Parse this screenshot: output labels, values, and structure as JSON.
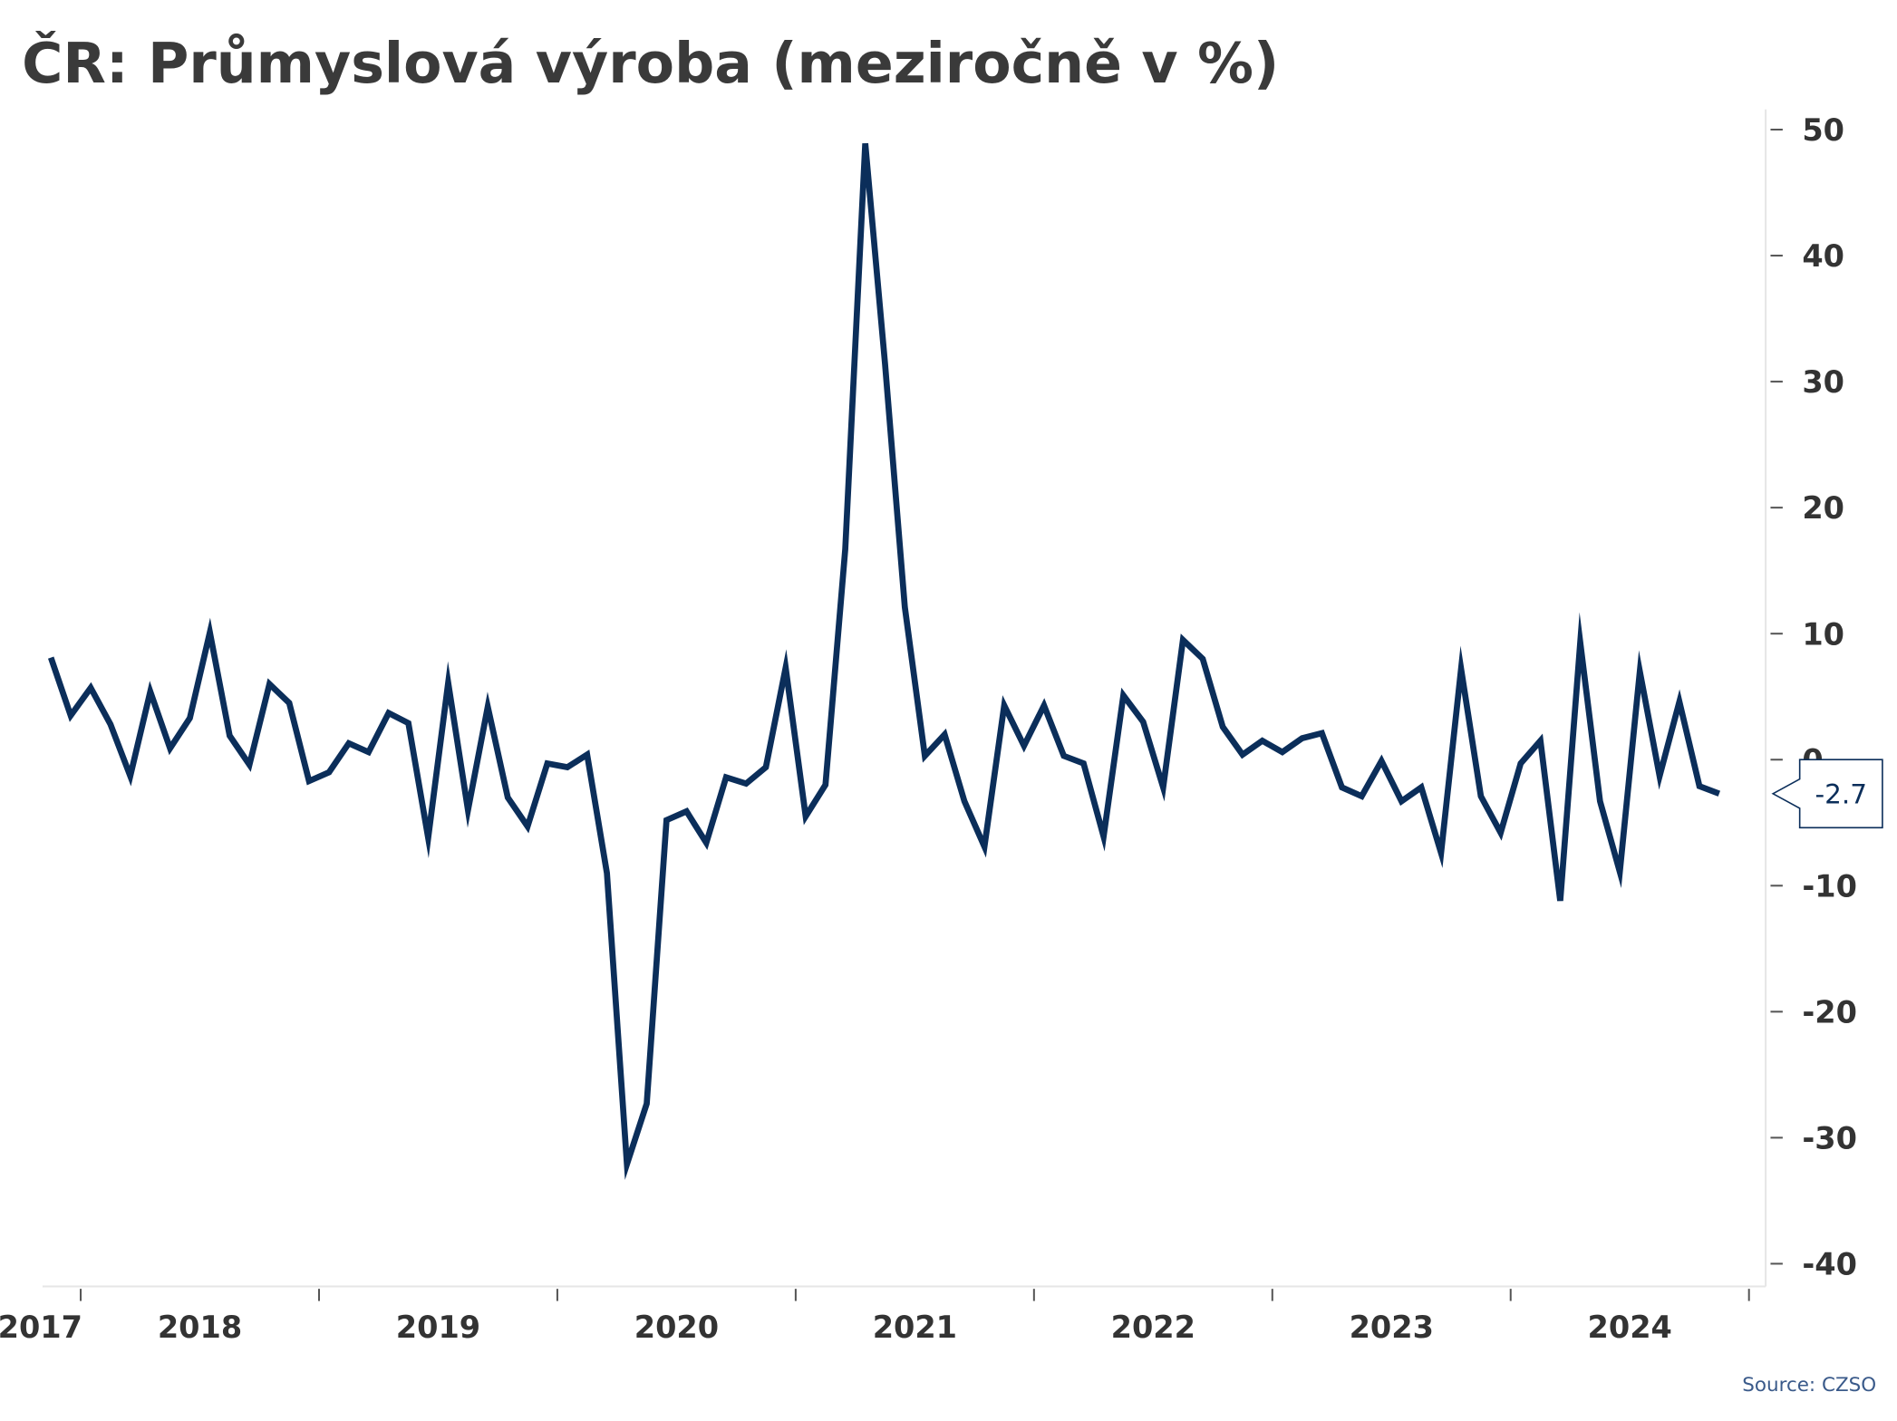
{
  "chart_data": {
    "type": "line",
    "title": "ČR: Průmyslová výroba (meziročně v %)",
    "source": "Source: CZSO",
    "x": [
      2017.875,
      2017.958,
      2018.042,
      2018.125,
      2018.208,
      2018.292,
      2018.375,
      2018.458,
      2018.542,
      2018.625,
      2018.708,
      2018.792,
      2018.875,
      2018.958,
      2019.042,
      2019.125,
      2019.208,
      2019.292,
      2019.375,
      2019.458,
      2019.542,
      2019.625,
      2019.708,
      2019.792,
      2019.875,
      2019.958,
      2020.042,
      2020.125,
      2020.208,
      2020.292,
      2020.375,
      2020.458,
      2020.542,
      2020.625,
      2020.708,
      2020.792,
      2020.875,
      2020.958,
      2021.042,
      2021.125,
      2021.208,
      2021.292,
      2021.375,
      2021.458,
      2021.542,
      2021.625,
      2021.708,
      2021.792,
      2021.875,
      2021.958,
      2022.042,
      2022.125,
      2022.208,
      2022.292,
      2022.375,
      2022.458,
      2022.542,
      2022.625,
      2022.708,
      2022.792,
      2022.875,
      2022.958,
      2023.042,
      2023.125,
      2023.208,
      2023.292,
      2023.375,
      2023.458,
      2023.542,
      2023.625,
      2023.708,
      2023.792,
      2023.875,
      2023.958,
      2024.042,
      2024.125,
      2024.208,
      2024.292,
      2024.375,
      2024.458,
      2024.542,
      2024.625,
      2024.708,
      2024.792,
      2024.875
    ],
    "series": [
      {
        "color": "#0b2e5a",
        "values": [
          8.1,
          3.5,
          5.7,
          2.8,
          -1.3,
          5.4,
          0.9,
          3.3,
          10.1,
          1.9,
          -0.4,
          6.0,
          4.5,
          -1.7,
          -1.0,
          1.3,
          0.6,
          3.7,
          2.9,
          -6.2,
          6.1,
          -4.0,
          4.2,
          -3.0,
          -5.3,
          -0.3,
          -0.6,
          0.4,
          -9.0,
          -32.1,
          -27.3,
          -4.8,
          -4.1,
          -6.6,
          -1.4,
          -1.9,
          -0.6,
          7.3,
          -4.5,
          -2.0,
          16.7,
          48.9,
          31.4,
          12.1,
          0.3,
          2.0,
          -3.3,
          -6.9,
          4.3,
          1.1,
          4.3,
          0.3,
          -0.3,
          -6.1,
          5.1,
          3.0,
          -2.2,
          9.5,
          8.0,
          2.6,
          0.4,
          1.5,
          0.6,
          1.7,
          2.1,
          -2.2,
          -2.9,
          -0.1,
          -3.3,
          -2.2,
          -7.4,
          7.2,
          -2.9,
          -5.8,
          -0.3,
          1.5,
          -11.2,
          9.3,
          -3.3,
          -8.9,
          7.0,
          -1.3,
          4.6,
          -2.1,
          -2.7
        ]
      }
    ],
    "xlim": [
      2017.84,
      2025.07
    ],
    "xticks": [
      2018,
      2019,
      2020,
      2021,
      2022,
      2023,
      2024,
      2025
    ],
    "year_labels": [
      2017,
      2018,
      2019,
      2020,
      2021,
      2022,
      2023,
      2024
    ],
    "ylim": [
      -41.8,
      51.6
    ],
    "yticks": [
      -40,
      -30,
      -20,
      -10,
      0,
      10,
      20,
      30,
      40,
      50
    ]
  }
}
